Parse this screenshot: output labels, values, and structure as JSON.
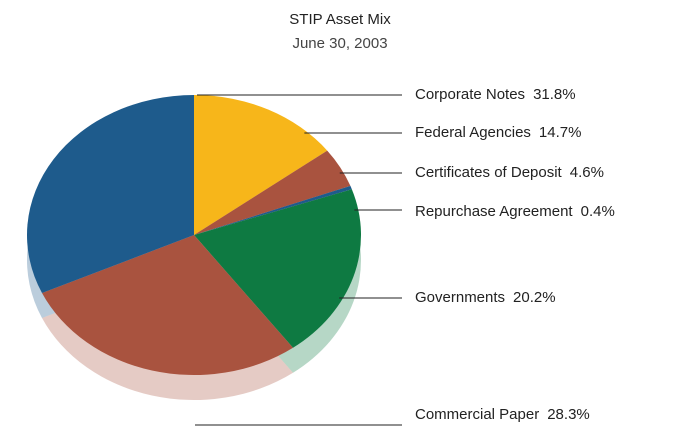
{
  "chart_data": {
    "type": "pie",
    "title": "STIP Asset Mix",
    "subtitle": "June 30, 2003",
    "categories": [
      "Corporate Notes",
      "Federal Agencies",
      "Certificates of Deposit",
      "Repurchase Agreement",
      "Governments",
      "Commercial Paper"
    ],
    "values": [
      31.8,
      14.7,
      4.6,
      0.4,
      20.2,
      28.3
    ],
    "value_labels": [
      "31.8%",
      "14.7%",
      "4.6%",
      "0.4%",
      "20.2%",
      "28.3%"
    ],
    "colors": [
      "#1e5b8c",
      "#f7b61a",
      "#a9533f",
      "#1e5b8c",
      "#0e7a42",
      "#a9533f"
    ]
  }
}
